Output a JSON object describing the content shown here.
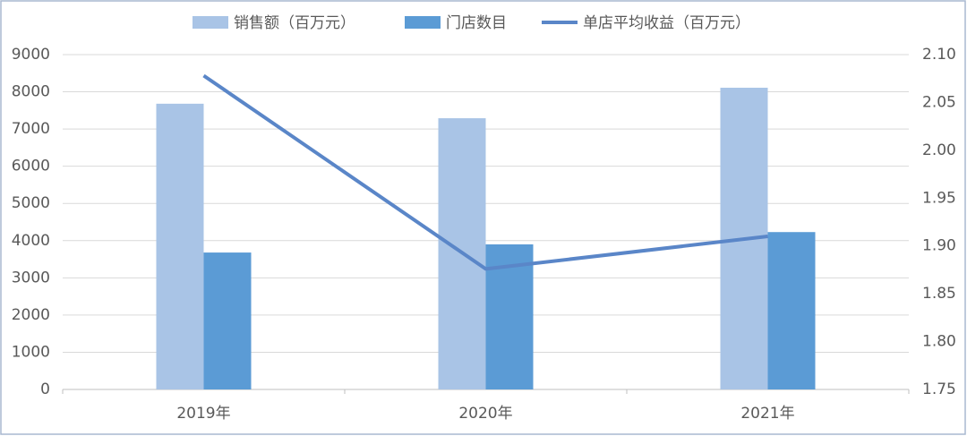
{
  "chart_data": {
    "type": "bar",
    "categories": [
      "2019年",
      "2020年",
      "2021年"
    ],
    "series": [
      {
        "name": "销售额（百万元）",
        "color": "#a9c4e6",
        "values": [
          7680,
          7290,
          8110
        ]
      },
      {
        "name": "门店数目",
        "color": "#5b9bd5",
        "values": [
          3680,
          3900,
          4230
        ]
      },
      {
        "name": "单店平均收益（百万元）",
        "color": "#5a86c8",
        "type": "line",
        "axis": "y2",
        "values": [
          2.078,
          1.876,
          1.91
        ]
      }
    ],
    "ylim": [
      0,
      9000
    ],
    "yticks": [
      0,
      1000,
      2000,
      3000,
      4000,
      5000,
      6000,
      7000,
      8000,
      9000
    ],
    "y2lim": [
      1.75,
      2.1
    ],
    "y2ticks": [
      1.75,
      {
        "value": 1.8,
        "label": "1.80"
      },
      1.85,
      {
        "value": 1.9,
        "label": "1.90"
      },
      1.95,
      {
        "value": 2.0,
        "label": "2.00"
      },
      2.05,
      {
        "value": 2.1,
        "label": "2.10"
      }
    ],
    "grid": true,
    "legend": "top"
  }
}
